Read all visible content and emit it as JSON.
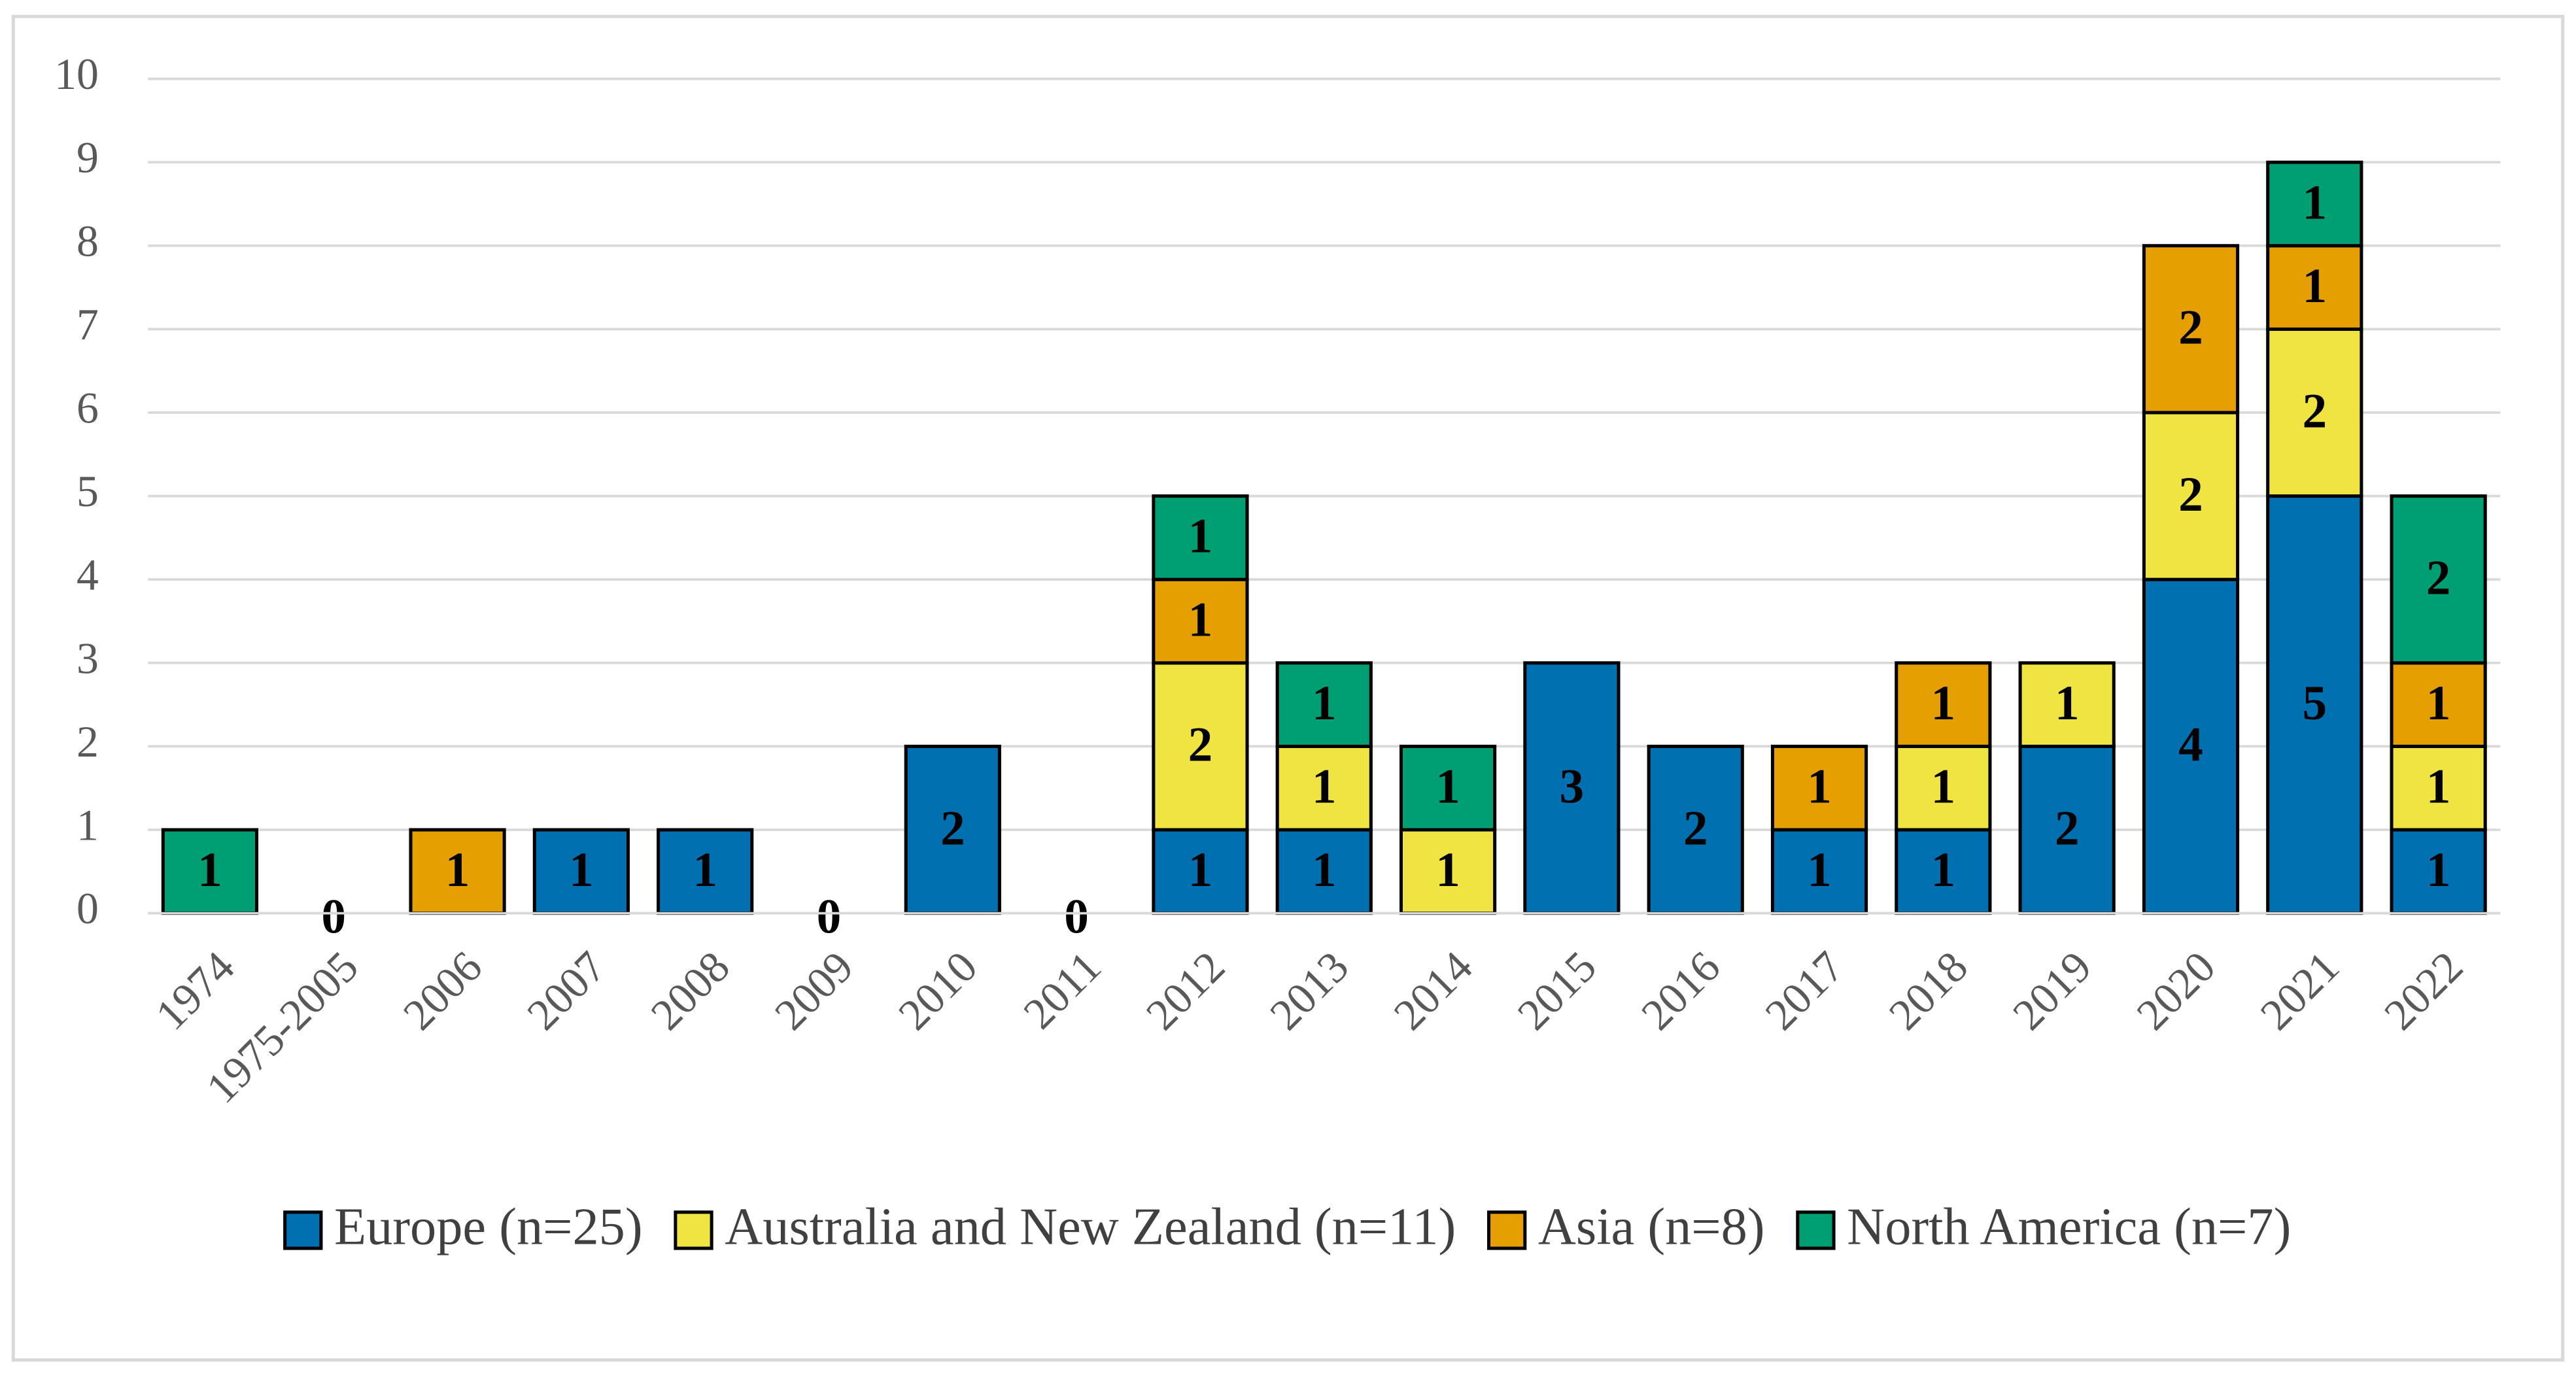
{
  "chart_data": {
    "type": "stacked_bar",
    "categories": [
      "1974",
      "1975-2005",
      "2006",
      "2007",
      "2008",
      "2009",
      "2010",
      "2011",
      "2012",
      "2013",
      "2014",
      "2015",
      "2016",
      "2017",
      "2018",
      "2019",
      "2020",
      "2021",
      "2022"
    ],
    "series": [
      {
        "name": "Europe (n=25)",
        "color": "#0070b0",
        "values": [
          0,
          0,
          0,
          1,
          1,
          0,
          2,
          0,
          1,
          1,
          0,
          3,
          2,
          1,
          1,
          2,
          4,
          5,
          1
        ]
      },
      {
        "name": "Australia and New Zealand (n=11)",
        "color": "#f0e442",
        "values": [
          0,
          0,
          0,
          0,
          0,
          0,
          0,
          0,
          2,
          1,
          1,
          0,
          0,
          0,
          1,
          1,
          2,
          2,
          1
        ]
      },
      {
        "name": "Asia (n=8)",
        "color": "#e69f00",
        "values": [
          0,
          0,
          1,
          0,
          0,
          0,
          0,
          0,
          1,
          0,
          0,
          0,
          0,
          1,
          1,
          0,
          2,
          1,
          1
        ]
      },
      {
        "name": "North America (n=7)",
        "color": "#009e73",
        "values": [
          1,
          0,
          0,
          0,
          0,
          0,
          0,
          0,
          1,
          1,
          1,
          0,
          0,
          0,
          0,
          0,
          0,
          1,
          2
        ]
      }
    ],
    "total_labels": [
      null,
      0,
      null,
      null,
      null,
      0,
      null,
      0,
      null,
      null,
      null,
      null,
      null,
      null,
      null,
      null,
      null,
      null,
      null
    ],
    "ylim": [
      0,
      10
    ],
    "yticks": [
      0,
      1,
      2,
      3,
      4,
      5,
      6,
      7,
      8,
      9,
      10
    ],
    "grid": true,
    "legend": "bottom"
  }
}
